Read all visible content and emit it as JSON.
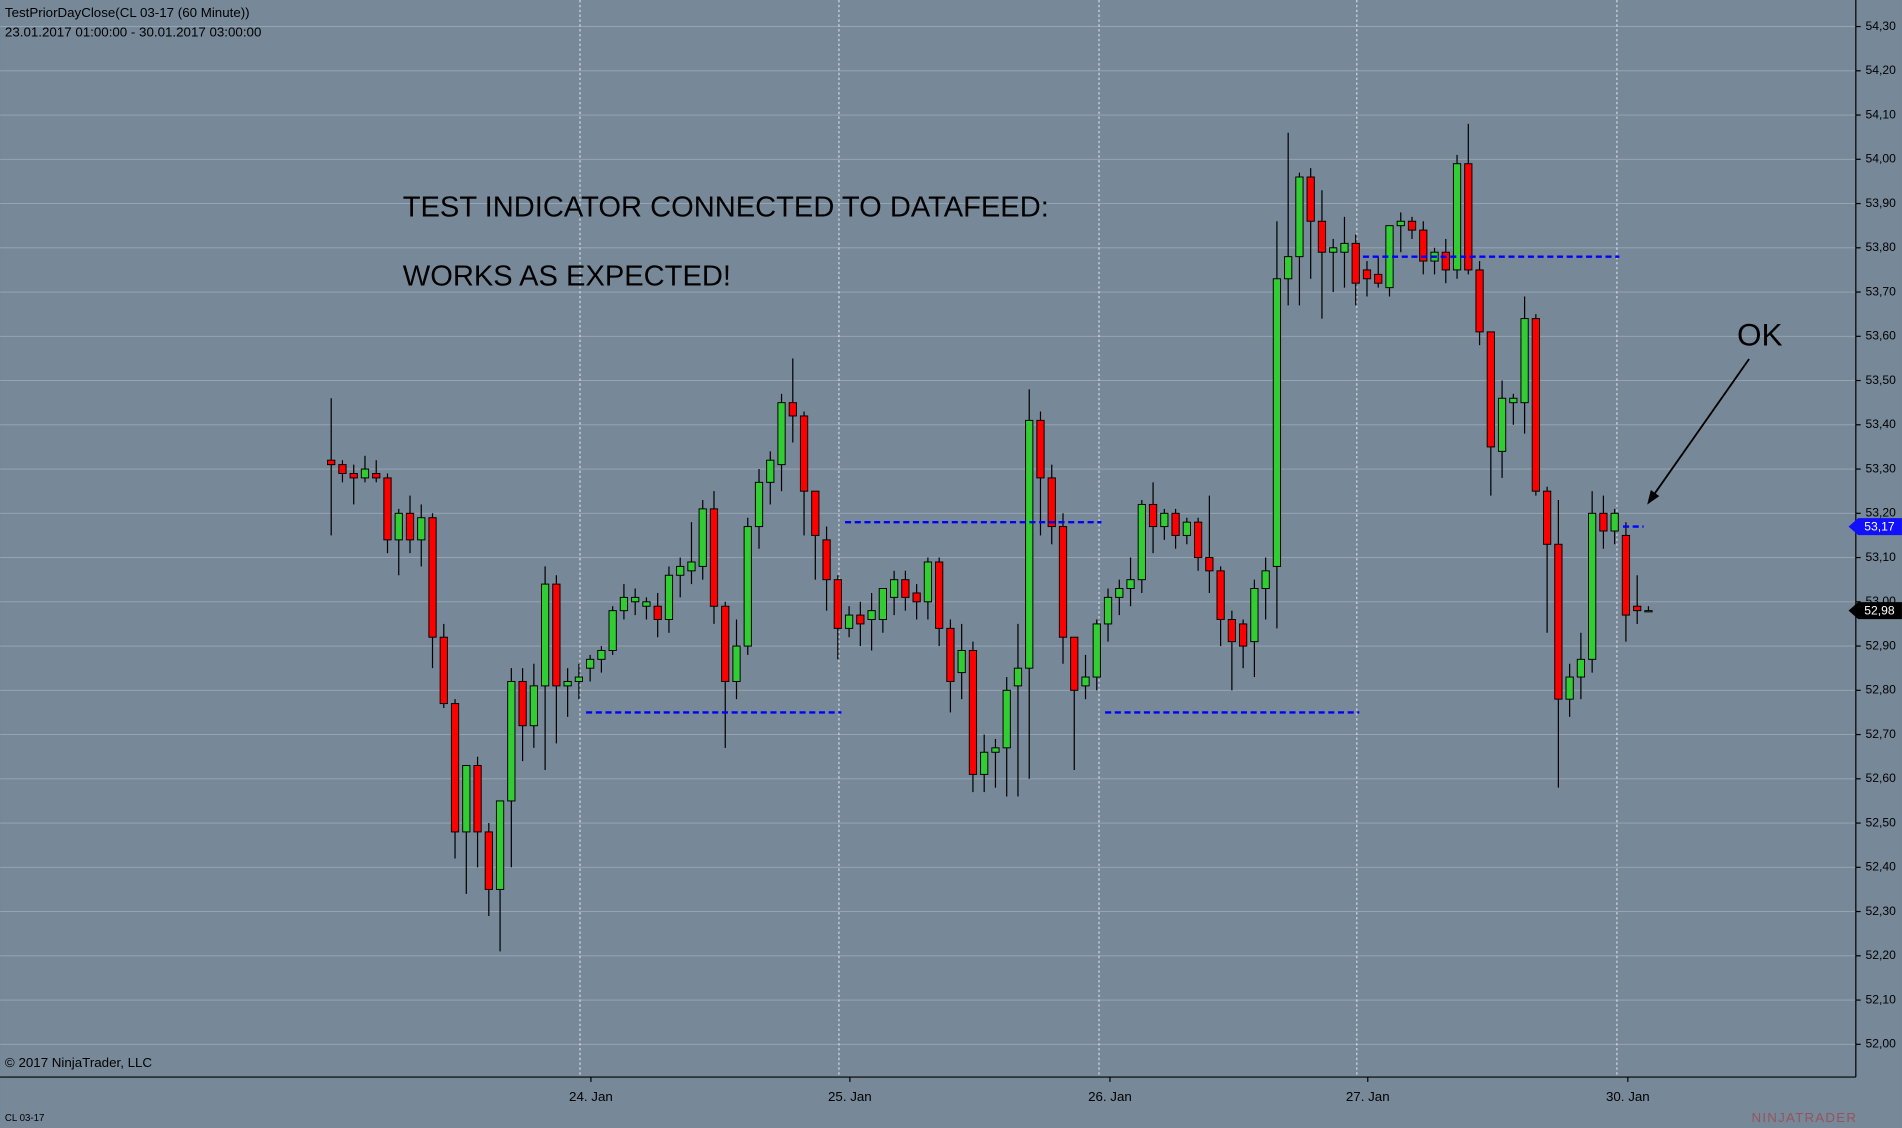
{
  "chart_data": {
    "type": "candlestick",
    "title": "TestPriorDayClose(CL 03-17 (60 Minute))",
    "subtitle": "23.01.2017 01:00:00 - 30.01.2017 03:00:00",
    "annotations": [
      "TEST INDICATOR CONNECTED TO DATAFEED:",
      "WORKS AS EXPECTED!",
      "OK"
    ],
    "copyright": "© 2017 NinjaTrader, LLC",
    "instrument": "CL 03-17",
    "logo": "NINJATRADER",
    "up_color": "#32cd32",
    "down_color": "#ff0000",
    "grid": true,
    "open": [
      53.32,
      53.31,
      53.29,
      53.28,
      53.29,
      53.28,
      53.14,
      53.2,
      53.14,
      53.19,
      52.92,
      52.77,
      52.48,
      52.63,
      52.48,
      52.35,
      52.55,
      52.82,
      52.72,
      52.81,
      53.04,
      52.81,
      52.82,
      52.85,
      52.87,
      52.89,
      52.98,
      53.0,
      52.99,
      52.99,
      52.96,
      53.06,
      53.07,
      53.08,
      53.21,
      52.99,
      52.82,
      52.9,
      53.17,
      53.27,
      53.31,
      53.45,
      53.42,
      53.25,
      53.14,
      53.05,
      52.94,
      52.97,
      52.96,
      52.96,
      53.01,
      53.05,
      53.02,
      53.0,
      53.09,
      52.94,
      52.84,
      52.89,
      52.61,
      52.66,
      52.67,
      52.81,
      52.85,
      53.41,
      53.28,
      53.17,
      52.92,
      52.81,
      52.83,
      52.95,
      53.01,
      53.03,
      53.05,
      53.22,
      53.17,
      53.2,
      53.15,
      53.18,
      53.1,
      53.07,
      52.96,
      52.95,
      52.91,
      53.03,
      53.08,
      53.73,
      53.78,
      53.96,
      53.86,
      53.79,
      53.79,
      53.81,
      53.75,
      53.74,
      53.71,
      53.85,
      53.86,
      53.84,
      53.77,
      53.79,
      53.75,
      53.99,
      53.75,
      53.61,
      53.34,
      53.45,
      53.45,
      53.64,
      53.25,
      53.13,
      52.78,
      52.83,
      52.87,
      53.2,
      53.16,
      53.15,
      52.99,
      52.98
    ],
    "high": [
      53.46,
      53.32,
      53.31,
      53.33,
      53.32,
      53.29,
      53.21,
      53.24,
      53.22,
      53.2,
      52.95,
      52.78,
      52.63,
      52.65,
      52.5,
      52.55,
      52.85,
      52.85,
      52.86,
      53.08,
      53.06,
      52.85,
      52.86,
      52.88,
      52.9,
      52.99,
      53.04,
      53.03,
      53.01,
      53.02,
      53.08,
      53.1,
      53.18,
      53.23,
      53.25,
      53.0,
      52.96,
      53.19,
      53.3,
      53.34,
      53.47,
      53.55,
      53.43,
      53.25,
      53.17,
      53.06,
      52.99,
      53.0,
      53.02,
      53.02,
      53.07,
      53.07,
      53.04,
      53.1,
      53.1,
      52.96,
      52.95,
      52.91,
      52.7,
      52.69,
      52.83,
      52.95,
      53.48,
      53.43,
      53.31,
      53.2,
      52.92,
      52.88,
      52.96,
      53.03,
      53.05,
      53.1,
      53.23,
      53.27,
      53.21,
      53.21,
      53.19,
      53.19,
      53.24,
      53.08,
      52.98,
      52.96,
      53.05,
      53.1,
      53.86,
      54.06,
      53.97,
      53.98,
      53.93,
      53.82,
      53.87,
      53.83,
      53.77,
      53.78,
      53.85,
      53.88,
      53.87,
      53.86,
      53.8,
      53.82,
      54.01,
      54.08,
      53.77,
      53.61,
      53.5,
      53.47,
      53.69,
      53.65,
      53.26,
      53.23,
      52.86,
      52.93,
      53.25,
      53.24,
      53.21,
      53.18,
      53.06,
      52.99
    ],
    "low": [
      53.15,
      53.27,
      53.22,
      53.27,
      53.27,
      53.11,
      53.06,
      53.11,
      53.08,
      52.85,
      52.76,
      52.42,
      52.34,
      52.4,
      52.29,
      52.21,
      52.4,
      52.64,
      52.67,
      52.62,
      52.68,
      52.74,
      52.78,
      52.82,
      52.84,
      52.88,
      52.96,
      52.97,
      52.96,
      52.92,
      52.93,
      53.01,
      53.04,
      53.05,
      52.95,
      52.67,
      52.78,
      52.88,
      53.12,
      53.22,
      53.25,
      53.36,
      53.15,
      53.05,
      52.98,
      52.87,
      52.92,
      52.9,
      52.89,
      52.93,
      52.97,
      52.98,
      52.96,
      52.96,
      52.9,
      52.75,
      52.78,
      52.57,
      52.57,
      52.58,
      52.56,
      52.56,
      52.6,
      53.15,
      53.13,
      52.86,
      52.62,
      52.78,
      52.8,
      52.91,
      52.97,
      52.99,
      53.02,
      53.11,
      53.14,
      53.12,
      53.13,
      53.07,
      53.02,
      52.9,
      52.8,
      52.85,
      52.83,
      52.96,
      52.94,
      53.67,
      53.67,
      53.73,
      53.64,
      53.7,
      53.71,
      53.67,
      53.69,
      53.71,
      53.69,
      53.79,
      53.82,
      53.74,
      53.74,
      53.72,
      53.73,
      53.74,
      53.58,
      53.24,
      53.28,
      53.4,
      53.38,
      53.24,
      52.93,
      52.58,
      52.74,
      52.78,
      52.84,
      53.12,
      53.13,
      52.91,
      52.95,
      52.98
    ],
    "close": [
      53.31,
      53.29,
      53.28,
      53.3,
      53.28,
      53.14,
      53.2,
      53.14,
      53.19,
      52.92,
      52.77,
      52.48,
      52.63,
      52.48,
      52.35,
      52.55,
      52.82,
      52.72,
      52.81,
      53.04,
      52.81,
      52.82,
      52.83,
      52.87,
      52.89,
      52.98,
      53.01,
      53.01,
      53.0,
      52.96,
      53.06,
      53.08,
      53.09,
      53.21,
      52.99,
      52.82,
      52.9,
      53.17,
      53.27,
      53.32,
      53.45,
      53.42,
      53.25,
      53.15,
      53.05,
      52.94,
      52.97,
      52.95,
      52.98,
      53.03,
      53.05,
      53.01,
      53.0,
      53.09,
      52.94,
      52.82,
      52.89,
      52.61,
      52.66,
      52.67,
      52.8,
      52.85,
      53.41,
      53.28,
      53.17,
      52.92,
      52.8,
      52.83,
      52.95,
      53.01,
      53.03,
      53.05,
      53.22,
      53.17,
      53.2,
      53.15,
      53.18,
      53.1,
      53.07,
      52.96,
      52.91,
      52.9,
      53.03,
      53.07,
      53.73,
      53.78,
      53.96,
      53.86,
      53.79,
      53.8,
      53.81,
      53.72,
      53.73,
      53.72,
      53.85,
      53.86,
      53.84,
      53.77,
      53.79,
      53.75,
      53.99,
      53.75,
      53.61,
      53.35,
      53.46,
      53.46,
      53.64,
      53.25,
      53.13,
      52.78,
      52.83,
      52.87,
      53.2,
      53.16,
      53.2,
      52.97,
      52.98,
      52.98
    ],
    "prior_close": {
      "color": "#0000ff",
      "values": [
        52.75,
        53.18,
        52.75,
        53.78,
        53.17
      ]
    },
    "price_markers": [
      {
        "value": 53.17,
        "label": "53,17",
        "color": "#1010ff"
      },
      {
        "value": 52.98,
        "label": "52,98",
        "color": "#000000"
      }
    ],
    "xlim": [
      -29.41,
      135.42
    ],
    "xticks": [
      {
        "value": 22.1,
        "label": "24. Jan"
      },
      {
        "value": 45.1,
        "label": "25. Jan"
      },
      {
        "value": 68.2,
        "label": "26. Jan"
      },
      {
        "value": 91.1,
        "label": "27. Jan"
      },
      {
        "value": 114.2,
        "label": "30. Jan"
      }
    ],
    "ylim": [
      51.926,
      54.36
    ],
    "yticks": [
      {
        "value": 52.0,
        "label": "52,00"
      },
      {
        "value": 52.1,
        "label": "52,10"
      },
      {
        "value": 52.2,
        "label": "52,20"
      },
      {
        "value": 52.3,
        "label": "52,30"
      },
      {
        "value": 52.4,
        "label": "52,40"
      },
      {
        "value": 52.5,
        "label": "52,50"
      },
      {
        "value": 52.6,
        "label": "52,60"
      },
      {
        "value": 52.7,
        "label": "52,70"
      },
      {
        "value": 52.8,
        "label": "52,80"
      },
      {
        "value": 52.9,
        "label": "52,90"
      },
      {
        "value": 53.0,
        "label": "53,00"
      },
      {
        "value": 53.1,
        "label": "53,10"
      },
      {
        "value": 53.2,
        "label": "53,20"
      },
      {
        "value": 53.3,
        "label": "53,30"
      },
      {
        "value": 53.4,
        "label": "53,40"
      },
      {
        "value": 53.5,
        "label": "53,50"
      },
      {
        "value": 53.6,
        "label": "53,60"
      },
      {
        "value": 53.7,
        "label": "53,70"
      },
      {
        "value": 53.8,
        "label": "53,80"
      },
      {
        "value": 53.9,
        "label": "53,90"
      },
      {
        "value": 54.0,
        "label": "54,00"
      },
      {
        "value": 54.1,
        "label": "54,10"
      },
      {
        "value": 54.2,
        "label": "54,20"
      },
      {
        "value": 54.3,
        "label": "54,30"
      }
    ]
  }
}
